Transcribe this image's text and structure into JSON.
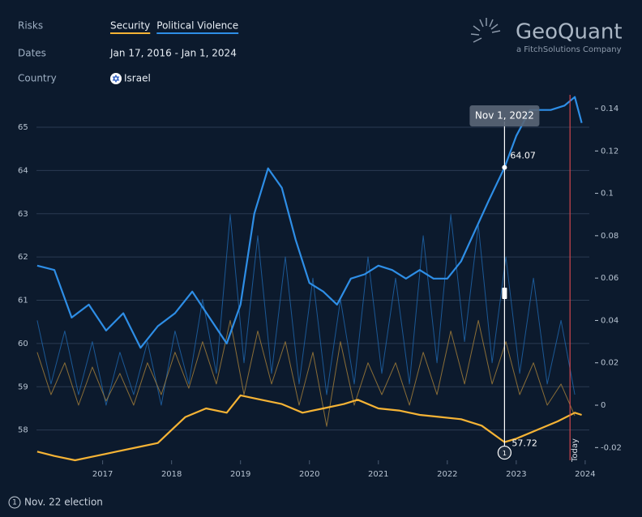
{
  "header": {
    "risks_label": "Risks",
    "dates_label": "Dates",
    "dates": "Jan 17, 2016 - Jan 1, 2024",
    "country_label": "Country",
    "country": "Israel"
  },
  "logo": {
    "name": "GeoQuant",
    "tagline": "a FitchSolutions Company"
  },
  "chart_data": {
    "type": "line",
    "xlim": [
      2016.04,
      2024.06
    ],
    "xticks": [
      2017,
      2018,
      2019,
      2020,
      2021,
      2022,
      2023,
      2024
    ],
    "ylim": [
      57.3,
      65.75
    ],
    "yticks": [
      58,
      59,
      60,
      61,
      62,
      63,
      64,
      65
    ],
    "y2lim": [
      -0.026,
      0.1465
    ],
    "y2ticks": [
      -0.02,
      0,
      0.02,
      0.04,
      0.06,
      0.08,
      0.1,
      0.12,
      0.14
    ],
    "grid": true,
    "series": [
      {
        "color": "#1f64a8",
        "axis": "y2",
        "x": [
          2016.05,
          2016.25,
          2016.45,
          2016.65,
          2016.85,
          2017.05,
          2017.25,
          2017.45,
          2017.65,
          2017.85,
          2018.05,
          2018.25,
          2018.45,
          2018.65,
          2018.85,
          2019.05,
          2019.25,
          2019.45,
          2019.65,
          2019.85,
          2020.05,
          2020.25,
          2020.45,
          2020.65,
          2020.85,
          2021.05,
          2021.25,
          2021.45,
          2021.65,
          2021.85,
          2022.05,
          2022.25,
          2022.45,
          2022.65,
          2022.85,
          2023.05,
          2023.25,
          2023.45,
          2023.65,
          2023.85
        ],
        "values": [
          0.04,
          0.01,
          0.035,
          0.005,
          0.03,
          0.0,
          0.025,
          0.005,
          0.03,
          0.0,
          0.035,
          0.01,
          0.05,
          0.015,
          0.09,
          0.02,
          0.08,
          0.015,
          0.07,
          0.01,
          0.06,
          0.005,
          0.05,
          0.01,
          0.07,
          0.015,
          0.06,
          0.01,
          0.08,
          0.02,
          0.09,
          0.03,
          0.085,
          0.02,
          0.07,
          0.015,
          0.06,
          0.01,
          0.04,
          0.005
        ]
      },
      {
        "color": "#a07c3a",
        "axis": "y2",
        "x": [
          2016.05,
          2016.25,
          2016.45,
          2016.65,
          2016.85,
          2017.05,
          2017.25,
          2017.45,
          2017.65,
          2017.85,
          2018.05,
          2018.25,
          2018.45,
          2018.65,
          2018.85,
          2019.05,
          2019.25,
          2019.45,
          2019.65,
          2019.85,
          2020.05,
          2020.25,
          2020.45,
          2020.65,
          2020.85,
          2021.05,
          2021.25,
          2021.45,
          2021.65,
          2021.85,
          2022.05,
          2022.25,
          2022.45,
          2022.65,
          2022.85,
          2023.05,
          2023.25,
          2023.45,
          2023.65,
          2023.85
        ],
        "values": [
          0.025,
          0.005,
          0.02,
          0.0,
          0.018,
          0.002,
          0.015,
          0.0,
          0.02,
          0.005,
          0.025,
          0.008,
          0.03,
          0.01,
          0.04,
          0.005,
          0.035,
          0.01,
          0.03,
          0.0,
          0.025,
          -0.01,
          0.03,
          0.0,
          0.02,
          0.005,
          0.02,
          0.0,
          0.025,
          0.005,
          0.035,
          0.01,
          0.04,
          0.01,
          0.03,
          0.005,
          0.02,
          0.0,
          0.01,
          -0.005
        ]
      },
      {
        "name": "Security",
        "color": "#f5b335",
        "x": [
          2016.05,
          2016.3,
          2016.6,
          2016.9,
          2017.2,
          2017.5,
          2017.8,
          2018.0,
          2018.2,
          2018.5,
          2018.8,
          2019.0,
          2019.3,
          2019.6,
          2019.9,
          2020.2,
          2020.5,
          2020.7,
          2021.0,
          2021.3,
          2021.6,
          2021.9,
          2022.2,
          2022.5,
          2022.83,
          2023.0,
          2023.3,
          2023.6,
          2023.85,
          2023.95
        ],
        "values": [
          57.5,
          57.4,
          57.3,
          57.4,
          57.5,
          57.6,
          57.7,
          58.0,
          58.3,
          58.5,
          58.4,
          58.8,
          58.7,
          58.6,
          58.4,
          58.5,
          58.6,
          58.7,
          58.5,
          58.45,
          58.35,
          58.3,
          58.25,
          58.1,
          57.72,
          57.8,
          58.0,
          58.2,
          58.4,
          58.35
        ]
      },
      {
        "name": "Political Violence",
        "color": "#2e8ee6",
        "x": [
          2016.05,
          2016.3,
          2016.55,
          2016.8,
          2017.05,
          2017.3,
          2017.55,
          2017.8,
          2018.05,
          2018.3,
          2018.55,
          2018.8,
          2019.0,
          2019.2,
          2019.4,
          2019.6,
          2019.8,
          2020.0,
          2020.2,
          2020.4,
          2020.6,
          2020.8,
          2021.0,
          2021.2,
          2021.4,
          2021.6,
          2021.8,
          2022.0,
          2022.2,
          2022.4,
          2022.6,
          2022.83,
          2023.0,
          2023.2,
          2023.5,
          2023.7,
          2023.85,
          2023.95
        ],
        "values": [
          61.8,
          61.7,
          60.6,
          60.9,
          60.3,
          60.7,
          59.9,
          60.4,
          60.7,
          61.2,
          60.6,
          60.0,
          60.9,
          63.0,
          64.05,
          63.6,
          62.4,
          61.4,
          61.2,
          60.9,
          61.5,
          61.6,
          61.8,
          61.7,
          61.5,
          61.7,
          61.5,
          61.5,
          61.9,
          62.6,
          63.3,
          64.07,
          64.8,
          65.4,
          65.4,
          65.5,
          65.7,
          65.1
        ]
      }
    ],
    "hover": {
      "x": 2022.83,
      "x_label": "Nov 1, 2022",
      "values": [
        64.07,
        57.72
      ]
    },
    "today": {
      "x": 2023.78,
      "label": "Today",
      "color": "#d0454c"
    },
    "events": [
      {
        "x": 2022.83,
        "marker": "1",
        "label": "Nov. 22 election"
      }
    ]
  }
}
